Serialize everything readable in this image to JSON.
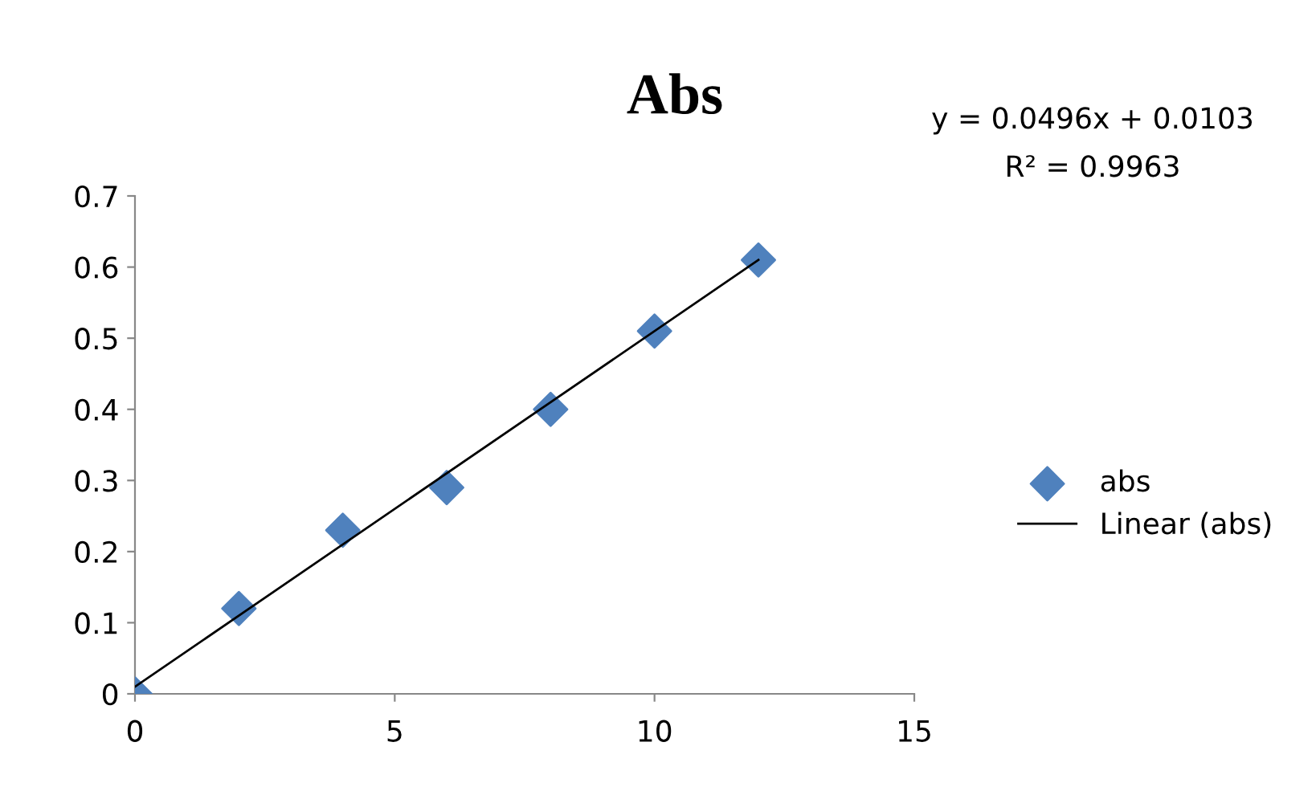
{
  "chart_data": {
    "type": "scatter",
    "title": "Abs",
    "x": [
      0,
      2,
      4,
      6,
      8,
      10,
      12
    ],
    "series": [
      {
        "name": "abs",
        "color": "#4f81bd",
        "marker": "diamond",
        "values": [
          0,
          0.12,
          0.23,
          0.29,
          0.4,
          0.51,
          0.61
        ]
      },
      {
        "name": "Linear (abs)",
        "type": "line",
        "color": "#000000",
        "x": [
          0,
          12
        ],
        "values": [
          0.01,
          0.61
        ],
        "marker": "none",
        "line_style": "solid"
      }
    ],
    "annotations": [
      "y = 0.0496x + 0.0103",
      "R² = 0.9963"
    ],
    "xlim": [
      0,
      15
    ],
    "xticks": [
      0,
      5,
      10,
      15
    ],
    "ylim": [
      0,
      0.7
    ],
    "yticks": [
      0,
      0.1,
      0.2,
      0.3,
      0.4,
      0.5,
      0.6,
      0.7
    ],
    "grid": false,
    "legend": "right"
  }
}
